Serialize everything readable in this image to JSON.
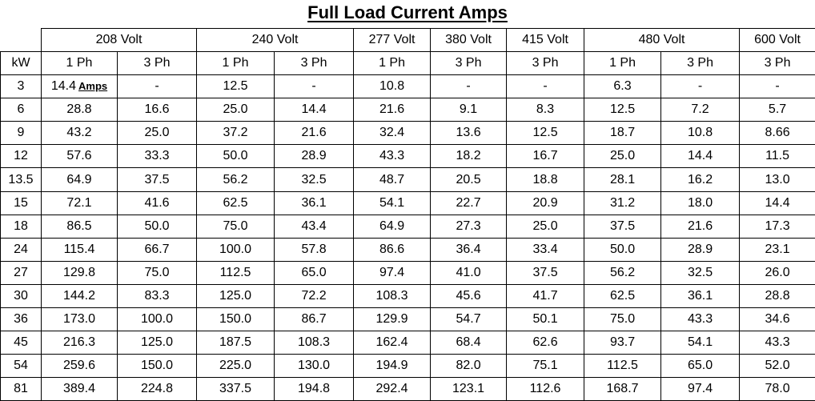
{
  "title": "Full Load Current Amps",
  "header": {
    "kw_label": "kW",
    "voltages": [
      {
        "label": "208 Volt",
        "span": 2
      },
      {
        "label": "240 Volt",
        "span": 2
      },
      {
        "label": "277 Volt",
        "span": 1
      },
      {
        "label": "380 Volt",
        "span": 1
      },
      {
        "label": "415 Volt",
        "span": 1
      },
      {
        "label": "480 Volt",
        "span": 2
      },
      {
        "label": "600 Volt",
        "span": 1
      }
    ],
    "phases": [
      "1 Ph",
      "3 Ph",
      "1 Ph",
      "3 Ph",
      "1 Ph",
      "3 Ph",
      "3 Ph",
      "1 Ph",
      "3 Ph",
      "3 Ph"
    ]
  },
  "amps_label": "Amps",
  "rows": [
    {
      "kw": "3",
      "values": [
        "14.4",
        "-",
        "12.5",
        "-",
        "10.8",
        "-",
        "-",
        "6.3",
        "-",
        "-"
      ]
    },
    {
      "kw": "6",
      "values": [
        "28.8",
        "16.6",
        "25.0",
        "14.4",
        "21.6",
        "9.1",
        "8.3",
        "12.5",
        "7.2",
        "5.7"
      ]
    },
    {
      "kw": "9",
      "values": [
        "43.2",
        "25.0",
        "37.2",
        "21.6",
        "32.4",
        "13.6",
        "12.5",
        "18.7",
        "10.8",
        "8.66"
      ]
    },
    {
      "kw": "12",
      "values": [
        "57.6",
        "33.3",
        "50.0",
        "28.9",
        "43.3",
        "18.2",
        "16.7",
        "25.0",
        "14.4",
        "11.5"
      ]
    },
    {
      "kw": "13.5",
      "values": [
        "64.9",
        "37.5",
        "56.2",
        "32.5",
        "48.7",
        "20.5",
        "18.8",
        "28.1",
        "16.2",
        "13.0"
      ]
    },
    {
      "kw": "15",
      "values": [
        "72.1",
        "41.6",
        "62.5",
        "36.1",
        "54.1",
        "22.7",
        "20.9",
        "31.2",
        "18.0",
        "14.4"
      ]
    },
    {
      "kw": "18",
      "values": [
        "86.5",
        "50.0",
        "75.0",
        "43.4",
        "64.9",
        "27.3",
        "25.0",
        "37.5",
        "21.6",
        "17.3"
      ]
    },
    {
      "kw": "24",
      "values": [
        "115.4",
        "66.7",
        "100.0",
        "57.8",
        "86.6",
        "36.4",
        "33.4",
        "50.0",
        "28.9",
        "23.1"
      ]
    },
    {
      "kw": "27",
      "values": [
        "129.8",
        "75.0",
        "112.5",
        "65.0",
        "97.4",
        "41.0",
        "37.5",
        "56.2",
        "32.5",
        "26.0"
      ]
    },
    {
      "kw": "30",
      "values": [
        "144.2",
        "83.3",
        "125.0",
        "72.2",
        "108.3",
        "45.6",
        "41.7",
        "62.5",
        "36.1",
        "28.8"
      ]
    },
    {
      "kw": "36",
      "values": [
        "173.0",
        "100.0",
        "150.0",
        "86.7",
        "129.9",
        "54.7",
        "50.1",
        "75.0",
        "43.3",
        "34.6"
      ]
    },
    {
      "kw": "45",
      "values": [
        "216.3",
        "125.0",
        "187.5",
        "108.3",
        "162.4",
        "68.4",
        "62.6",
        "93.7",
        "54.1",
        "43.3"
      ]
    },
    {
      "kw": "54",
      "values": [
        "259.6",
        "150.0",
        "225.0",
        "130.0",
        "194.9",
        "82.0",
        "75.1",
        "112.5",
        "65.0",
        "52.0"
      ]
    },
    {
      "kw": "81",
      "values": [
        "389.4",
        "224.8",
        "337.5",
        "194.8",
        "292.4",
        "123.1",
        "112.6",
        "168.7",
        "97.4",
        "78.0"
      ]
    }
  ]
}
